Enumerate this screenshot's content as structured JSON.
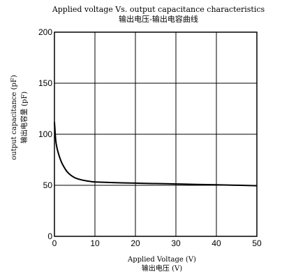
{
  "chart_data": {
    "type": "line",
    "title": "Applied voltage Vs. output capacitance characteristics",
    "subtitle": "输出电压-输出电容曲线",
    "xlabel": "Applied Voltage (V)",
    "xlabel_cn": "输出电压 (V)",
    "ylabel": "output capacitance (pF)",
    "ylabel_cn": "输出电容量 (pF)",
    "xlim": [
      0,
      50
    ],
    "ylim": [
      0,
      200
    ],
    "xticks": [
      0,
      10,
      20,
      30,
      40,
      50
    ],
    "yticks": [
      0,
      50,
      100,
      150,
      200
    ],
    "grid": true,
    "series": [
      {
        "x": [
          0,
          0.3,
          0.6,
          1,
          1.5,
          2,
          3,
          4,
          5,
          6,
          7,
          8,
          9,
          10,
          15,
          20,
          25,
          30,
          35,
          40,
          45,
          50
        ],
        "y": [
          112,
          95,
          87,
          81,
          75,
          70.5,
          64,
          60,
          57.5,
          56,
          55,
          54.3,
          53.7,
          53.3,
          52.6,
          52.1,
          51.7,
          51.3,
          50.9,
          50.5,
          50.1,
          49.6
        ]
      }
    ],
    "line_color": "#000000",
    "grid_color": "#000000"
  }
}
